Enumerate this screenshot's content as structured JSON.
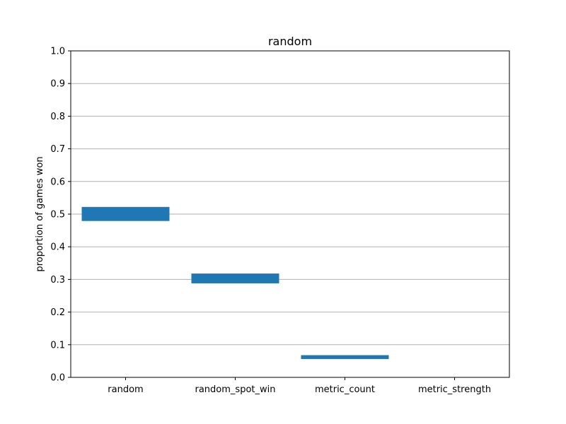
{
  "chart_data": {
    "type": "bar",
    "title": "random",
    "xlabel": "",
    "ylabel": "proportion of games won",
    "categories": [
      "random",
      "random_spot_win",
      "metric_count",
      "metric_strength"
    ],
    "ranges": [
      {
        "low": 0.479,
        "high": 0.522
      },
      {
        "low": 0.288,
        "high": 0.318
      },
      {
        "low": 0.056,
        "high": 0.068
      },
      {
        "low": 0.0,
        "high": 0.0
      }
    ],
    "ylim": [
      0,
      1.0
    ],
    "yticks": [
      "0.0",
      "0.1",
      "0.2",
      "0.3",
      "0.4",
      "0.5",
      "0.6",
      "0.7",
      "0.8",
      "0.9",
      "1.0"
    ],
    "grid": "y-major",
    "color": "#1f77b4"
  }
}
